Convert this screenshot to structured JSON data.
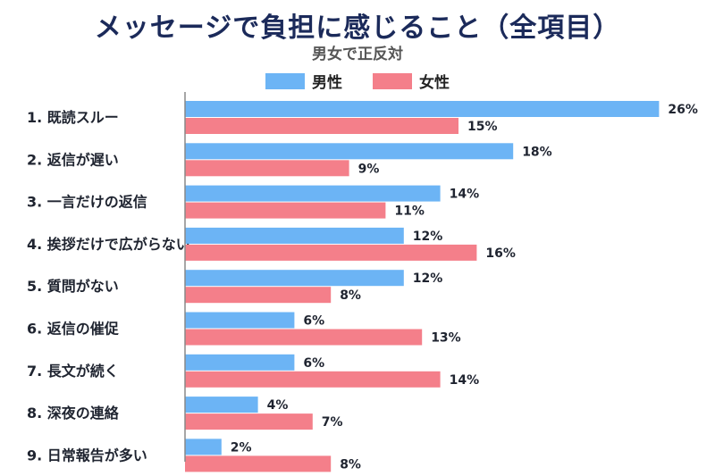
{
  "header": {
    "title": "メッセージで負担に感じること（全項目）",
    "subtitle": "男女で正反対"
  },
  "colors": {
    "male": "#6cb4f5",
    "female": "#f47f8a"
  },
  "chart_data": {
    "type": "bar",
    "orientation": "horizontal",
    "title": "メッセージで負担に感じること（全項目）",
    "subtitle": "男女で正反対",
    "categories": [
      "1. 既読スルー",
      "2. 返信が遅い",
      "3. 一言だけの返信",
      "4. 挨拶だけで広がらない",
      "5. 質問がない",
      "6. 返信の催促",
      "7. 長文が続く",
      "8. 深夜の連絡",
      "9. 日常報告が多い"
    ],
    "series": [
      {
        "name": "男性",
        "values": [
          26,
          18,
          14,
          12,
          12,
          6,
          6,
          4,
          2
        ],
        "color": "#6cb4f5"
      },
      {
        "name": "女性",
        "values": [
          15,
          9,
          11,
          16,
          8,
          13,
          14,
          7,
          8
        ],
        "color": "#f47f8a"
      }
    ],
    "unit": "%",
    "xlim": [
      0,
      28
    ],
    "legend": "top-center",
    "grid": false
  }
}
